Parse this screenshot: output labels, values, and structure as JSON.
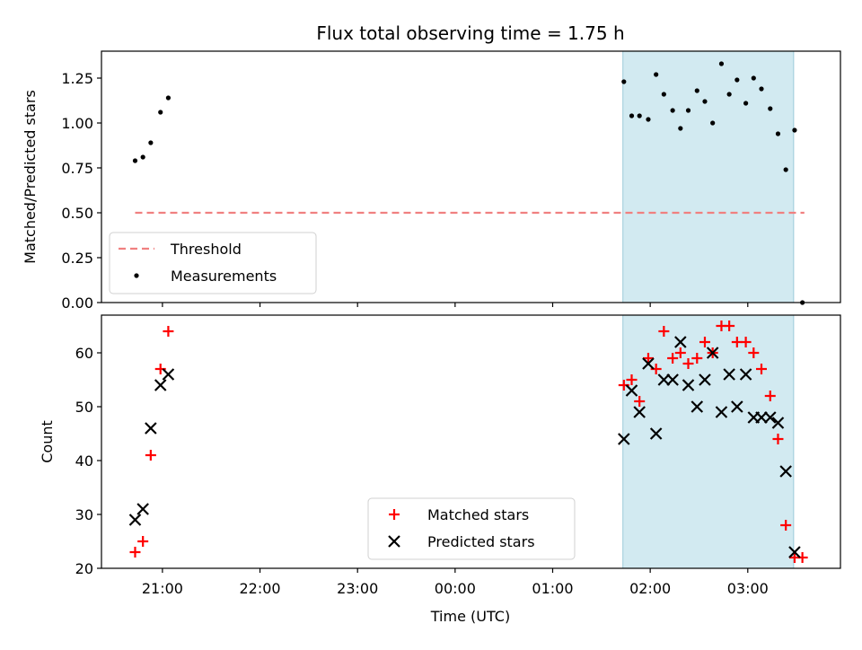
{
  "chart_data": [
    {
      "type": "scatter",
      "title": "Flux total observing time = 1.75 h",
      "ylabel": "Matched/Predicted stars",
      "xlim_hours": [
        20.375,
        27.95
      ],
      "ylim": [
        0,
        1.4
      ],
      "yticks": [
        "0.00",
        "0.25",
        "0.50",
        "0.75",
        "1.00",
        "1.25"
      ],
      "shaded_range_hours": [
        25.72,
        27.47
      ],
      "shade_color": "#add8e6",
      "threshold": {
        "name": "Threshold",
        "value": 0.5,
        "x_range_hours": [
          20.72,
          27.58
        ],
        "color": "#f08080"
      },
      "series": [
        {
          "name": "Measurements",
          "color": "#000000",
          "x_hours": [
            20.72,
            20.8,
            20.88,
            20.98,
            21.06,
            25.73,
            25.81,
            25.89,
            25.98,
            26.06,
            26.14,
            26.23,
            26.31,
            26.39,
            26.48,
            26.56,
            26.64,
            26.73,
            26.81,
            26.89,
            26.98,
            27.06,
            27.14,
            27.23,
            27.31,
            27.39,
            27.48,
            27.56
          ],
          "y": [
            0.79,
            0.81,
            0.89,
            1.06,
            1.14,
            1.23,
            1.04,
            1.04,
            1.02,
            1.27,
            1.16,
            1.07,
            0.97,
            1.07,
            1.18,
            1.12,
            1.0,
            1.33,
            1.16,
            1.24,
            1.11,
            1.25,
            1.19,
            1.08,
            0.94,
            0.74,
            0.96,
            0.0
          ]
        }
      ],
      "legend": [
        "Threshold",
        "Measurements"
      ],
      "legend_position": "lower-left"
    },
    {
      "type": "scatter",
      "xlabel": "Time (UTC)",
      "ylabel": "Count",
      "xlim_hours": [
        20.375,
        27.95
      ],
      "ylim": [
        20,
        67
      ],
      "yticks": [
        "20",
        "30",
        "40",
        "50",
        "60"
      ],
      "xticks": [
        {
          "hour": 21,
          "label": "21:00"
        },
        {
          "hour": 22,
          "label": "22:00"
        },
        {
          "hour": 23,
          "label": "23:00"
        },
        {
          "hour": 24,
          "label": "00:00"
        },
        {
          "hour": 25,
          "label": "01:00"
        },
        {
          "hour": 26,
          "label": "02:00"
        },
        {
          "hour": 27,
          "label": "03:00"
        }
      ],
      "shaded_range_hours": [
        25.72,
        27.47
      ],
      "shade_color": "#add8e6",
      "series": [
        {
          "name": "Matched stars",
          "marker": "plus",
          "color": "#ff0000",
          "x_hours": [
            20.72,
            20.8,
            20.88,
            20.98,
            21.06,
            25.73,
            25.81,
            25.89,
            25.98,
            26.06,
            26.14,
            26.23,
            26.31,
            26.39,
            26.48,
            26.56,
            26.64,
            26.73,
            26.81,
            26.89,
            26.98,
            27.06,
            27.14,
            27.23,
            27.31,
            27.39,
            27.48,
            27.56
          ],
          "y": [
            23,
            25,
            41,
            57,
            64,
            54,
            55,
            51,
            59,
            57,
            64,
            59,
            60,
            58,
            59,
            62,
            60,
            65,
            65,
            62,
            62,
            60,
            57,
            52,
            44,
            28,
            22,
            22
          ]
        },
        {
          "name": "Predicted stars",
          "marker": "x",
          "color": "#000000",
          "x_hours": [
            20.72,
            20.8,
            20.88,
            20.98,
            21.06,
            25.73,
            25.81,
            25.89,
            25.98,
            26.06,
            26.14,
            26.23,
            26.31,
            26.39,
            26.48,
            26.56,
            26.64,
            26.73,
            26.81,
            26.89,
            26.98,
            27.06,
            27.14,
            27.23,
            27.31,
            27.39,
            27.48
          ],
          "y": [
            29,
            31,
            46,
            54,
            56,
            44,
            53,
            49,
            58,
            45,
            55,
            55,
            62,
            54,
            50,
            55,
            60,
            49,
            56,
            50,
            56,
            48,
            48,
            48,
            47,
            38,
            23
          ]
        }
      ],
      "legend": [
        "Matched stars",
        "Predicted stars"
      ],
      "legend_position": "lower-center"
    }
  ]
}
